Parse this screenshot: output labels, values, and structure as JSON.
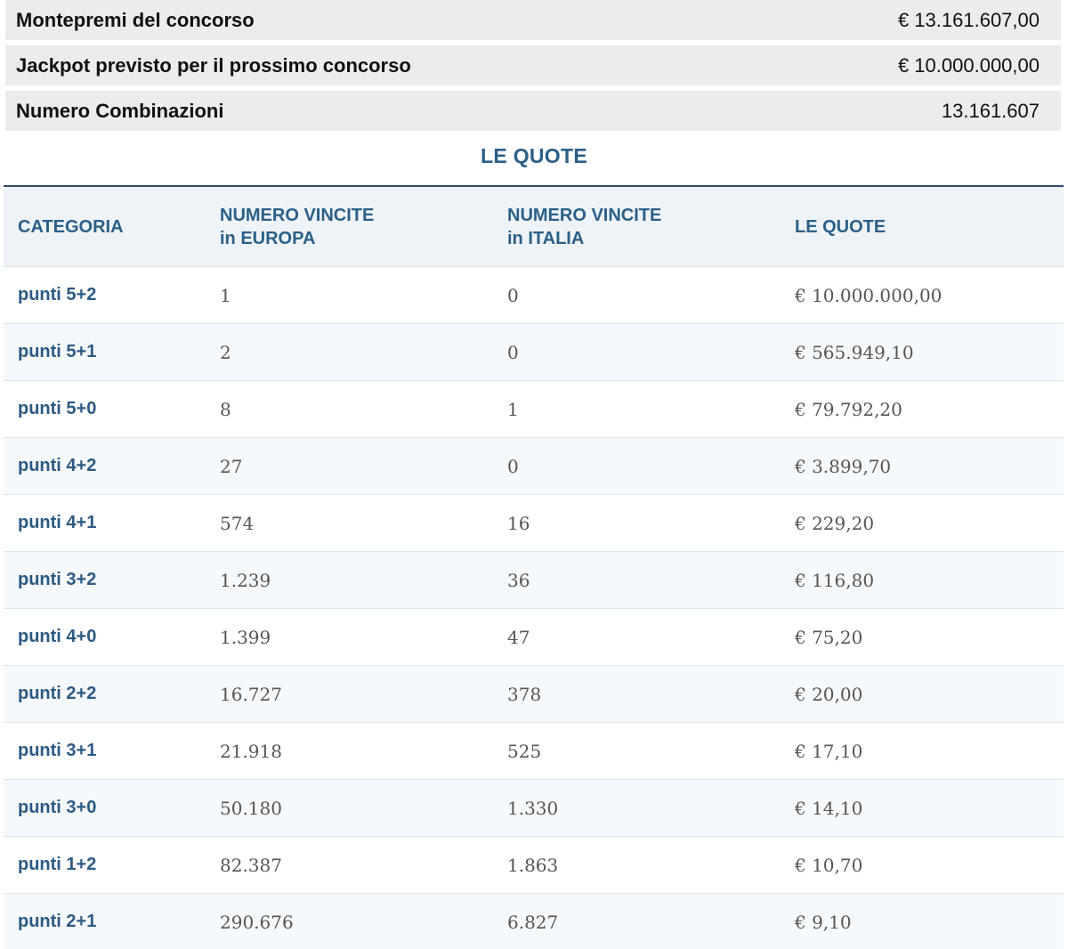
{
  "summary": [
    {
      "label": "Montepremi del concorso",
      "value": "€ 13.161.607,00"
    },
    {
      "label": "Jackpot previsto per il prossimo concorso",
      "value": "€ 10.000.000,00"
    },
    {
      "label": "Numero Combinazioni",
      "value": "13.161.607"
    }
  ],
  "section_title": "LE QUOTE",
  "table": {
    "headers": {
      "categoria": "CATEGORIA",
      "europa_line1": "NUMERO VINCITE",
      "europa_line2": "in EUROPA",
      "italia_line1": "NUMERO VINCITE",
      "italia_line2": "in ITALIA",
      "quote": "LE QUOTE"
    },
    "rows": [
      {
        "categoria": "punti 5+2",
        "europa": "1",
        "italia": "0",
        "quota": "€ 10.000.000,00"
      },
      {
        "categoria": "punti 5+1",
        "europa": "2",
        "italia": "0",
        "quota": "€ 565.949,10"
      },
      {
        "categoria": "punti 5+0",
        "europa": "8",
        "italia": "1",
        "quota": "€ 79.792,20"
      },
      {
        "categoria": "punti 4+2",
        "europa": "27",
        "italia": "0",
        "quota": "€ 3.899,70"
      },
      {
        "categoria": "punti 4+1",
        "europa": "574",
        "italia": "16",
        "quota": "€ 229,20"
      },
      {
        "categoria": "punti 3+2",
        "europa": "1.239",
        "italia": "36",
        "quota": "€ 116,80"
      },
      {
        "categoria": "punti 4+0",
        "europa": "1.399",
        "italia": "47",
        "quota": "€ 75,20"
      },
      {
        "categoria": "punti 2+2",
        "europa": "16.727",
        "italia": "378",
        "quota": "€ 20,00"
      },
      {
        "categoria": "punti 3+1",
        "europa": "21.918",
        "italia": "525",
        "quota": "€ 17,10"
      },
      {
        "categoria": "punti 3+0",
        "europa": "50.180",
        "italia": "1.330",
        "quota": "€ 14,10"
      },
      {
        "categoria": "punti 1+2",
        "europa": "82.387",
        "italia": "1.863",
        "quota": "€ 10,70"
      },
      {
        "categoria": "punti 2+1",
        "europa": "290.676",
        "italia": "6.827",
        "quota": "€ 9,10"
      }
    ]
  }
}
